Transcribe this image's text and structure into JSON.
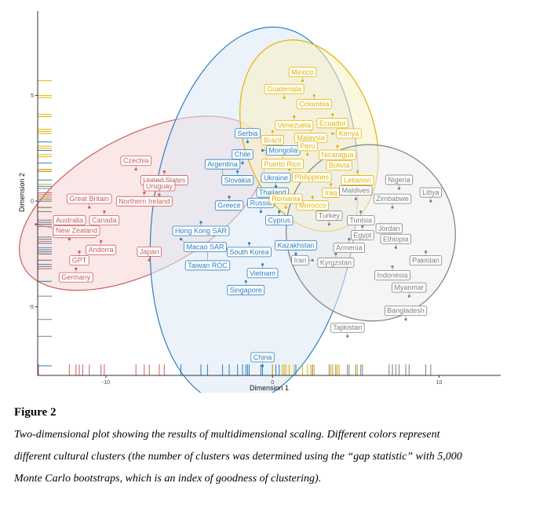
{
  "chart_data": {
    "type": "scatter",
    "xlabel": "Dimension 1",
    "ylabel": "Dimension 2",
    "xlim": [
      -14.1,
      13.7
    ],
    "ylim": [
      -8.25,
      9.0
    ],
    "xticks": [
      -10,
      0,
      10
    ],
    "yticks": [
      -5,
      0,
      5
    ],
    "grid": false,
    "legend": "none",
    "series": [
      {
        "color": "#cd5c5c",
        "fill": "#f6d4d4",
        "ellipse": {
          "cx": -7.8,
          "cy": -0.1,
          "rx": 8.1,
          "ry": 3.2,
          "angle": 28
        },
        "points": [
          {
            "label": "Czechia",
            "x": -8.2,
            "y": 1.5
          },
          {
            "label": "United States",
            "x": -6.5,
            "y": 1.4
          },
          {
            "label": "Northern Ireland",
            "x": -7.7,
            "y": 0.4
          },
          {
            "label": "Great Britain",
            "x": -11.0,
            "y": -0.3
          },
          {
            "label": "Canada",
            "x": -10.1,
            "y": -0.5
          },
          {
            "label": "Uruguay",
            "x": -6.8,
            "y": 0.3
          },
          {
            "label": "Australia",
            "x": -11.4,
            "y": -0.9
          },
          {
            "label": "Netherlands",
            "x": -14.2,
            "y": -1.1
          },
          {
            "label": "Andorra",
            "x": -10.3,
            "y": -1.9
          },
          {
            "label": "New Zealand",
            "x": -12.2,
            "y": -1.8
          },
          {
            "label": "GPT",
            "x": -11.6,
            "y": -2.4
          },
          {
            "label": "Japan",
            "x": -7.4,
            "y": -2.8
          },
          {
            "label": "Germany",
            "x": -11.8,
            "y": -3.2
          }
        ]
      },
      {
        "color": "#2d7fc0",
        "fill": "#dce8f4",
        "ellipse": {
          "cx": -1.1,
          "cy": -0.7,
          "rx": 6.1,
          "ry": 9.0,
          "angle": -8
        },
        "points": [
          {
            "label": "Serbia",
            "x": -1.5,
            "y": 2.8
          },
          {
            "label": "Chile",
            "x": -1.8,
            "y": 1.8
          },
          {
            "label": "Mongolia",
            "x": -0.6,
            "y": 2.4
          },
          {
            "label": "Slovakia",
            "x": -2.1,
            "y": 1.4
          },
          {
            "label": "Argentina",
            "x": -3.0,
            "y": 1.0
          },
          {
            "label": "Ukraine",
            "x": 0.2,
            "y": 0.7
          },
          {
            "label": "Greece",
            "x": -2.6,
            "y": 0.2
          },
          {
            "label": "Thailand",
            "x": 0.0,
            "y": 0.0
          },
          {
            "label": "Hong Kong SAR",
            "x": -4.3,
            "y": -1.0
          },
          {
            "label": "Russia",
            "x": -0.7,
            "y": -0.5
          },
          {
            "label": "Cyprus",
            "x": 0.4,
            "y": -0.5
          },
          {
            "label": "Macao SAR",
            "x": -5.5,
            "y": -1.8
          },
          {
            "label": "South Korea",
            "x": -1.4,
            "y": -2.0
          },
          {
            "label": "Taiwan ROC",
            "x": -3.9,
            "y": -2.3
          },
          {
            "label": "Kazakhstan",
            "x": 1.4,
            "y": -2.5
          },
          {
            "label": "Vietnam",
            "x": -0.6,
            "y": -3.0
          },
          {
            "label": "Singapore",
            "x": -1.6,
            "y": -3.8
          },
          {
            "label": "China",
            "x": -0.6,
            "y": -7.8
          }
        ]
      },
      {
        "color": "#e3b200",
        "fill": "#faf0c4",
        "ellipse": {
          "cx": 2.2,
          "cy": 3.1,
          "rx": 5.9,
          "ry": 3.1,
          "angle": -72
        },
        "points": [
          {
            "label": "Mexico",
            "x": 1.8,
            "y": 5.7
          },
          {
            "label": "Guatemala",
            "x": 0.7,
            "y": 4.9
          },
          {
            "label": "Colombia",
            "x": 2.5,
            "y": 5.0
          },
          {
            "label": "Venezuela",
            "x": 1.3,
            "y": 4.0
          },
          {
            "label": "Ecuador",
            "x": 3.6,
            "y": 4.1
          },
          {
            "label": "Brazil",
            "x": 0.0,
            "y": 3.3
          },
          {
            "label": "Malaysia",
            "x": 2.3,
            "y": 3.4
          },
          {
            "label": "Kenya",
            "x": 3.6,
            "y": 3.2
          },
          {
            "label": "Puerto Rico",
            "x": 0.6,
            "y": 2.5
          },
          {
            "label": "Nicaragua",
            "x": 3.9,
            "y": 2.6
          },
          {
            "label": "Peru",
            "x": 2.1,
            "y": 2.2
          },
          {
            "label": "Bolivia",
            "x": 4.0,
            "y": 2.1
          },
          {
            "label": "Philippines",
            "x": 1.0,
            "y": 1.5
          },
          {
            "label": "Lebanon",
            "x": 5.1,
            "y": 1.4
          },
          {
            "label": "Iraq",
            "x": 3.5,
            "y": 0.8
          },
          {
            "label": "Morocco",
            "x": 2.4,
            "y": 0.2
          },
          {
            "label": "Romania",
            "x": 0.8,
            "y": -0.3
          }
        ]
      },
      {
        "color": "#808080",
        "fill": "#ededed",
        "ellipse": {
          "cx": 5.9,
          "cy": -1.5,
          "rx": 5.3,
          "ry": 4.0,
          "angle": -78
        },
        "points": [
          {
            "label": "Nigeria",
            "x": 7.6,
            "y": 0.6
          },
          {
            "label": "Libya",
            "x": 9.5,
            "y": 0.0
          },
          {
            "label": "Maldives",
            "x": 5.0,
            "y": 0.1
          },
          {
            "label": "Zimbabwe",
            "x": 7.2,
            "y": -0.3
          },
          {
            "label": "Tunisia",
            "x": 5.3,
            "y": -0.5
          },
          {
            "label": "Turkey",
            "x": 3.4,
            "y": -1.1
          },
          {
            "label": "Egypt",
            "x": 5.4,
            "y": -1.2
          },
          {
            "label": "Jordan",
            "x": 7.0,
            "y": -1.7
          },
          {
            "label": "Armenia",
            "x": 4.6,
            "y": -1.8
          },
          {
            "label": "Ethiopia",
            "x": 7.4,
            "y": -2.2
          },
          {
            "label": "Pakistan",
            "x": 9.2,
            "y": -2.4
          },
          {
            "label": "Kyrgzstan",
            "x": 3.8,
            "y": -2.5
          },
          {
            "label": "Iran",
            "x": 2.4,
            "y": -2.8
          },
          {
            "label": "Indonesia",
            "x": 7.2,
            "y": -3.1
          },
          {
            "label": "Myanmar",
            "x": 8.2,
            "y": -4.5
          },
          {
            "label": "Bangladesh",
            "x": 8.0,
            "y": -5.6
          },
          {
            "label": "Tajikistan",
            "x": 4.5,
            "y": -6.4
          }
        ]
      }
    ]
  },
  "figure": {
    "title": "Figure 2",
    "caption_lines": [
      "Two-dimensional plot showing the results of multidimensional scaling. Different colors represent",
      "different cultural clusters (the number of clusters was determined using the “gap statistic” with 5,000",
      "Monte Carlo bootstraps, which is an index of goodness of clustering)."
    ]
  }
}
